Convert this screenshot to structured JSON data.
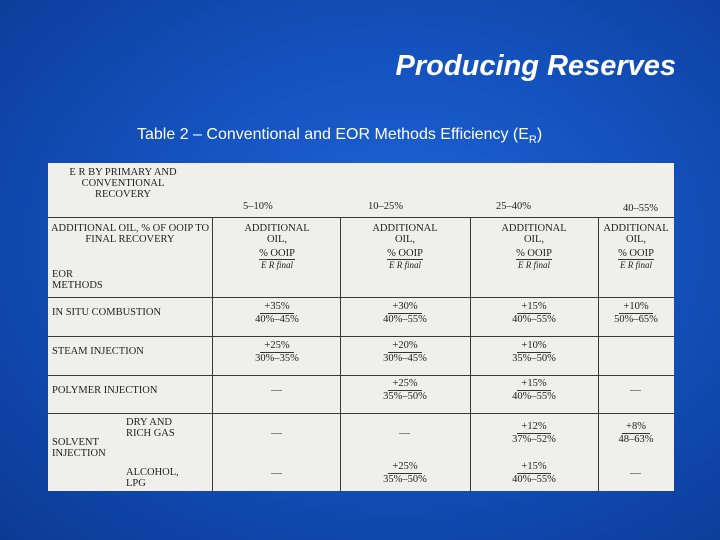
{
  "slide": {
    "title": "Producing Reserves",
    "subtitle_main": "Table 2 – Conventional and EOR Methods Efficiency (E",
    "subtitle_sub": "R",
    "subtitle_end": ")"
  },
  "table": {
    "corner_header": "E R BY PRIMARY AND CONVENTIONAL RECOVERY",
    "additional_header": "ADDITIONAL OIL, % OF OOIP TO FINAL RECOVERY",
    "eor_methods_label": "EOR METHODS",
    "ranges": [
      "5–10%",
      "10–25%",
      "25–40%",
      "40–55%"
    ],
    "col_header_line1": "ADDITIONAL",
    "col_header_line2": "OIL,",
    "col_header_line3": "% OOIP",
    "col_header_ratio": "E R final",
    "rows": [
      {
        "label": "IN SITU COMBUSTION",
        "cells": [
          {
            "num": "+35%",
            "den": "40%–45%"
          },
          {
            "num": "+30%",
            "den": "40%–55%"
          },
          {
            "num": "+15%",
            "den": "40%–55%"
          },
          {
            "num": "+10%",
            "den": "50%–65%"
          }
        ]
      },
      {
        "label": "STEAM INJECTION",
        "cells": [
          {
            "num": "+25%",
            "den": "30%–35%"
          },
          {
            "num": "+20%",
            "den": "30%–45%"
          },
          {
            "num": "+10%",
            "den": "35%–50%"
          },
          {
            "num": "",
            "den": ""
          }
        ]
      },
      {
        "label": "POLYMER INJECTION",
        "cells": [
          {
            "num": "—",
            "den": ""
          },
          {
            "num": "+25%",
            "den": "35%–50%"
          },
          {
            "num": "+15%",
            "den": "40%–55%"
          },
          {
            "num": "—",
            "den": ""
          }
        ]
      }
    ],
    "solvent_label_1": "SOLVENT",
    "solvent_label_2": "INJECTION",
    "solvent_sub1": "DRY AND RICH GAS",
    "solvent_sub2": "ALCOHOL, LPG",
    "gas_cells": [
      {
        "num": "—",
        "den": ""
      },
      {
        "num": "—",
        "den": ""
      },
      {
        "num": "+12%",
        "den": "37%–52%"
      },
      {
        "num": "+8%",
        "den": "48–63%"
      }
    ],
    "alcohol_cells": [
      {
        "num": "—",
        "den": ""
      },
      {
        "num": "+25%",
        "den": "35%–50%"
      },
      {
        "num": "+15%",
        "den": "40%–55%"
      },
      {
        "num": "—",
        "den": ""
      }
    ]
  }
}
